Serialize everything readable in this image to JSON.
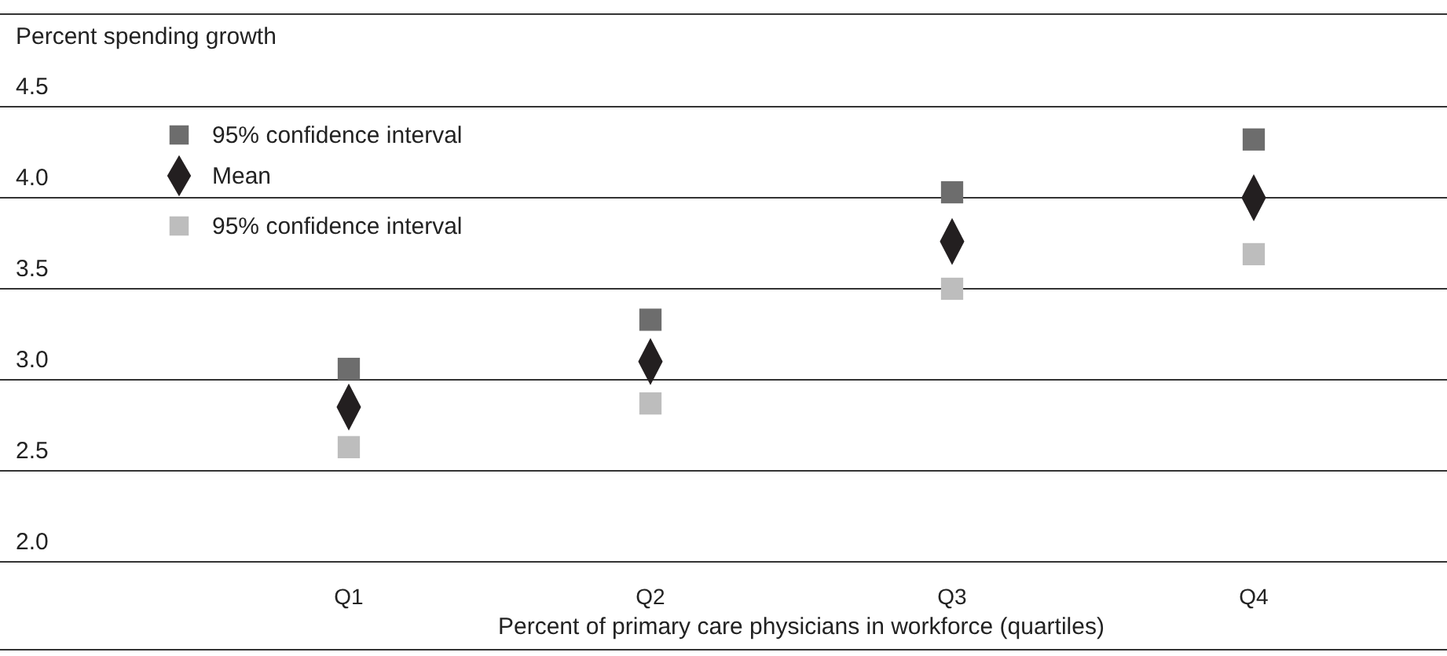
{
  "chart_data": {
    "type": "scatter",
    "ylabel": "Percent spending growth",
    "xlabel": "Percent of primary care physicians in workforce (quartiles)",
    "categories": [
      "Q1",
      "Q2",
      "Q3",
      "Q4"
    ],
    "series": [
      {
        "name": "95% confidence interval",
        "color": "#6d6d6d",
        "marker": "square",
        "values": [
          3.06,
          3.33,
          4.03,
          4.32
        ]
      },
      {
        "name": "Mean",
        "color": "#231f20",
        "marker": "diamond",
        "values": [
          2.85,
          3.1,
          3.76,
          4.0
        ]
      },
      {
        "name": "95% confidence interval",
        "color": "#bdbdbd",
        "marker": "square",
        "values": [
          2.63,
          2.87,
          3.5,
          3.69
        ]
      }
    ],
    "ylim": [
      2.0,
      4.5
    ],
    "yticks": [
      {
        "value": 2,
        "label": "2.0"
      },
      2.5,
      {
        "value": 3,
        "label": "3.0"
      },
      3.5,
      {
        "value": 4,
        "label": "4.0"
      },
      4.5
    ],
    "grid": "y",
    "legend": "top left"
  }
}
